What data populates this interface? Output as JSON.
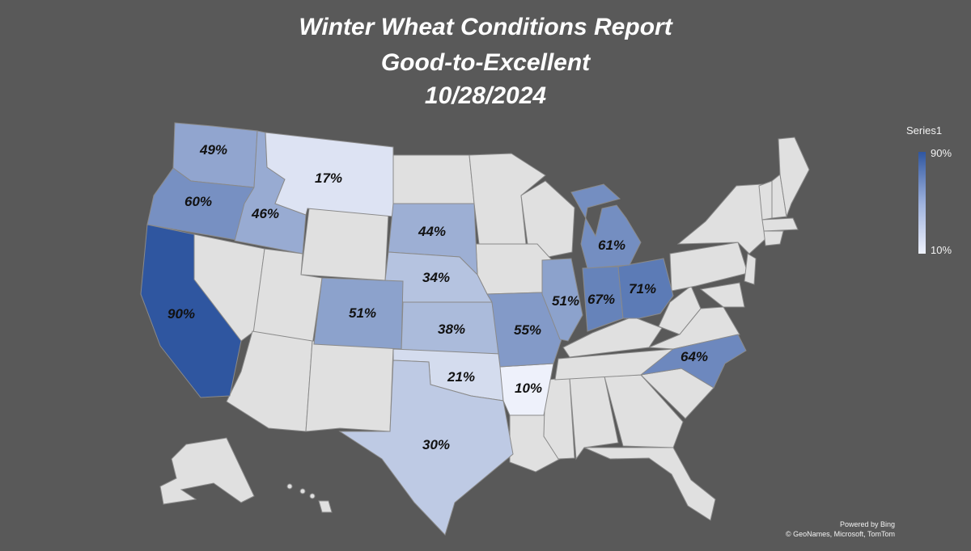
{
  "title": {
    "line1": "Winter Wheat Conditions Report",
    "line2": "Good-to-Excellent",
    "line3": "10/28/2024"
  },
  "legend": {
    "series_name": "Series1",
    "max_label": "90%",
    "min_label": "10%",
    "color_high": "#2f56a0",
    "color_low": "#eef1fb"
  },
  "attribution": {
    "line1": "Powered by Bing",
    "line2": "© GeoNames, Microsoft, TomTom"
  },
  "colors": {
    "background": "#595959",
    "no_data_state": "#e0e0e0",
    "state_border": "#8a8a8a"
  },
  "chart_data": {
    "type": "choropleth",
    "series": [
      {
        "name": "Series1",
        "states": [
          {
            "state": "Washington",
            "value": 49,
            "label": "49%"
          },
          {
            "state": "Oregon",
            "value": 60,
            "label": "60%"
          },
          {
            "state": "Idaho",
            "value": 46,
            "label": "46%"
          },
          {
            "state": "Montana",
            "value": 17,
            "label": "17%"
          },
          {
            "state": "California",
            "value": 90,
            "label": "90%"
          },
          {
            "state": "South Dakota",
            "value": 44,
            "label": "44%"
          },
          {
            "state": "Nebraska",
            "value": 34,
            "label": "34%"
          },
          {
            "state": "Colorado",
            "value": 51,
            "label": "51%"
          },
          {
            "state": "Kansas",
            "value": 38,
            "label": "38%"
          },
          {
            "state": "Oklahoma",
            "value": 21,
            "label": "21%"
          },
          {
            "state": "Texas",
            "value": 30,
            "label": "30%"
          },
          {
            "state": "Arkansas",
            "value": 10,
            "label": "10%"
          },
          {
            "state": "Missouri",
            "value": 55,
            "label": "55%"
          },
          {
            "state": "Illinois",
            "value": 51,
            "label": "51%"
          },
          {
            "state": "Indiana",
            "value": 67,
            "label": "67%"
          },
          {
            "state": "Ohio",
            "value": 71,
            "label": "71%"
          },
          {
            "state": "Michigan",
            "value": 61,
            "label": "61%"
          },
          {
            "state": "North Carolina",
            "value": 64,
            "label": "64%"
          }
        ]
      }
    ],
    "color_scale": {
      "min": 10,
      "max": 90
    }
  }
}
